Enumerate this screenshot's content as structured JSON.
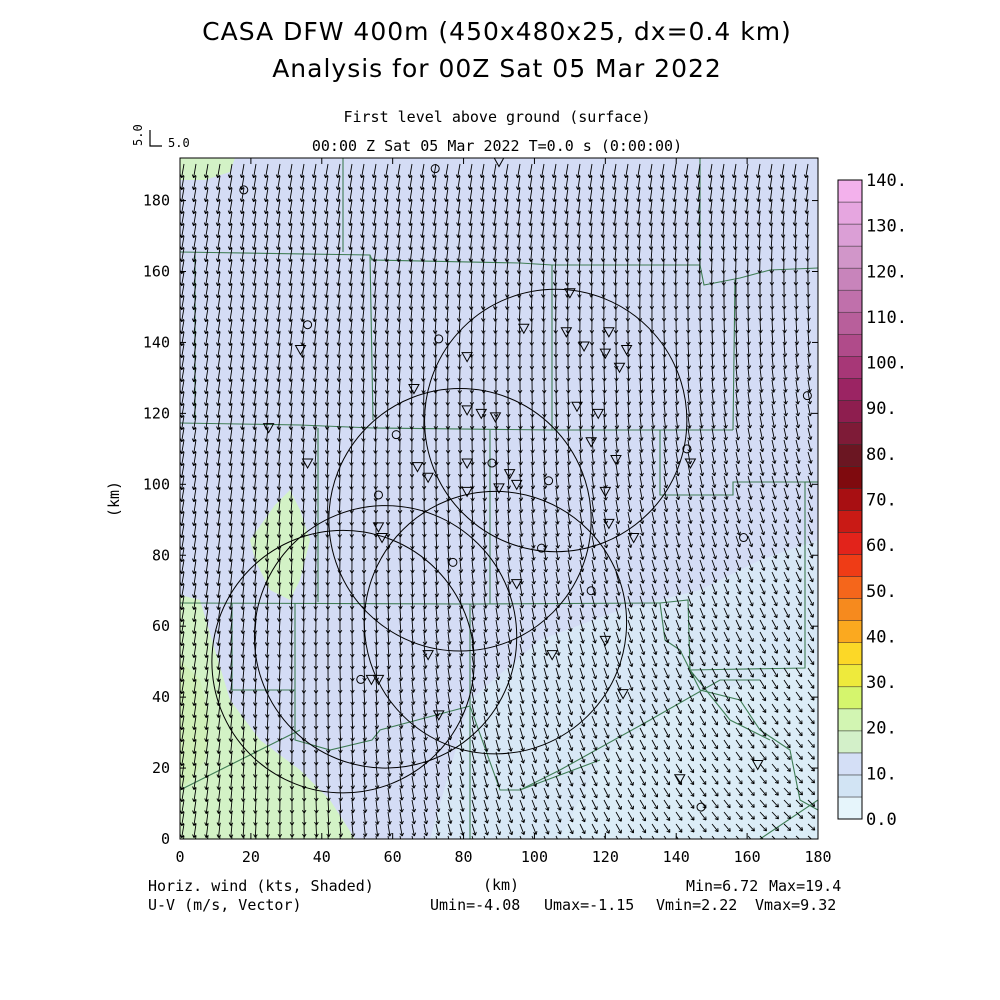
{
  "title": {
    "line1": "CASA DFW 400m (450x480x25, dx=0.4 km)",
    "line2": "Analysis for 00Z Sat 05 Mar 2022"
  },
  "subtitle": {
    "level": "First level above ground (surface)",
    "time": "00:00 Z Sat 05 Mar 2022    T=0.0 s (0:00:00)"
  },
  "reference_vector": {
    "value": "5.0",
    "label": "5.0"
  },
  "chart_data": {
    "type": "heatmap",
    "xlabel": "(km)",
    "ylabel": "(km)",
    "xlim": [
      0,
      180
    ],
    "ylim": [
      0,
      192
    ],
    "x_ticks": [
      "0",
      "20",
      "40",
      "60",
      "80",
      "100",
      "120",
      "140",
      "160",
      "180"
    ],
    "y_ticks": [
      "0",
      "20",
      "40",
      "60",
      "80",
      "100",
      "120",
      "140",
      "160",
      "180"
    ],
    "shaded_field": "Horiz. wind (kts, Shaded)",
    "vector_field": "U-V (m/s, Vector)",
    "colorbar": {
      "labels": [
        "0.0",
        "10.",
        "20.",
        "30.",
        "40.",
        "50.",
        "60.",
        "70.",
        "80.",
        "90.",
        "100.",
        "110.",
        "120.",
        "130.",
        "140."
      ],
      "colors": [
        "#e6f5fb",
        "#d2e4f4",
        "#d4dff6",
        "#d3f0c9",
        "#d2f5b2",
        "#d5f56d",
        "#eeea3c",
        "#fcd827",
        "#fba91f",
        "#f68a1e",
        "#f5661b",
        "#ef3c16",
        "#e2231b",
        "#c91a15",
        "#a80f12",
        "#7f0a0e",
        "#6b1622",
        "#7e1b37",
        "#8e1e4f",
        "#9b2463",
        "#a73777",
        "#b04b8a",
        "#b85f9b",
        "#c070ab",
        "#c884bb",
        "#d196c9",
        "#db9fd6",
        "#e6a6e0",
        "#f3b1ec"
      ]
    },
    "stats": {
      "min": "Min=6.72",
      "max": "Max=19.4",
      "umin": "Umin=-4.08",
      "umax": "Umax=-1.15",
      "vmin": "Vmin=2.22",
      "vmax": "Vmax=9.32"
    },
    "radar_rings": [
      {
        "cx": 106,
        "cy": 118,
        "r": 37
      },
      {
        "cx": 79,
        "cy": 90,
        "r": 37
      },
      {
        "cx": 89,
        "cy": 61,
        "r": 37
      },
      {
        "cx": 58,
        "cy": 57,
        "r": 37
      },
      {
        "cx": 46,
        "cy": 50,
        "r": 37
      }
    ],
    "stations": [
      {
        "x": 18,
        "y": 183,
        "m": "o"
      },
      {
        "x": 72,
        "y": 189,
        "m": "o"
      },
      {
        "x": 90,
        "y": 191,
        "m": "v"
      },
      {
        "x": 36,
        "y": 145,
        "m": "o"
      },
      {
        "x": 34,
        "y": 138,
        "m": "v"
      },
      {
        "x": 73,
        "y": 141,
        "m": "o"
      },
      {
        "x": 81,
        "y": 136,
        "m": "v"
      },
      {
        "x": 97,
        "y": 144,
        "m": "v"
      },
      {
        "x": 110,
        "y": 154,
        "m": "v"
      },
      {
        "x": 109,
        "y": 143,
        "m": "v"
      },
      {
        "x": 114,
        "y": 139,
        "m": "v"
      },
      {
        "x": 121,
        "y": 143,
        "m": "v"
      },
      {
        "x": 120,
        "y": 137,
        "m": "v"
      },
      {
        "x": 126,
        "y": 138,
        "m": "v"
      },
      {
        "x": 124,
        "y": 133,
        "m": "v"
      },
      {
        "x": 66,
        "y": 127,
        "m": "v"
      },
      {
        "x": 81,
        "y": 121,
        "m": "v"
      },
      {
        "x": 85,
        "y": 120,
        "m": "v"
      },
      {
        "x": 89,
        "y": 119,
        "m": "v"
      },
      {
        "x": 112,
        "y": 122,
        "m": "v"
      },
      {
        "x": 118,
        "y": 120,
        "m": "v"
      },
      {
        "x": 25,
        "y": 116,
        "m": "v"
      },
      {
        "x": 61,
        "y": 114,
        "m": "o"
      },
      {
        "x": 116,
        "y": 112,
        "m": "v"
      },
      {
        "x": 143,
        "y": 110,
        "m": "o"
      },
      {
        "x": 144,
        "y": 106,
        "m": "v"
      },
      {
        "x": 36,
        "y": 106,
        "m": "v"
      },
      {
        "x": 67,
        "y": 105,
        "m": "v"
      },
      {
        "x": 81,
        "y": 106,
        "m": "v"
      },
      {
        "x": 88,
        "y": 106,
        "m": "o"
      },
      {
        "x": 93,
        "y": 103,
        "m": "v"
      },
      {
        "x": 123,
        "y": 107,
        "m": "v"
      },
      {
        "x": 70,
        "y": 102,
        "m": "v"
      },
      {
        "x": 81,
        "y": 98,
        "m": "v"
      },
      {
        "x": 90,
        "y": 99,
        "m": "v"
      },
      {
        "x": 95,
        "y": 100,
        "m": "v"
      },
      {
        "x": 104,
        "y": 101,
        "m": "o"
      },
      {
        "x": 56,
        "y": 97,
        "m": "o"
      },
      {
        "x": 120,
        "y": 98,
        "m": "v"
      },
      {
        "x": 56,
        "y": 88,
        "m": "v"
      },
      {
        "x": 57,
        "y": 85,
        "m": "v"
      },
      {
        "x": 121,
        "y": 89,
        "m": "v"
      },
      {
        "x": 128,
        "y": 85,
        "m": "v"
      },
      {
        "x": 102,
        "y": 82,
        "m": "o"
      },
      {
        "x": 77,
        "y": 78,
        "m": "o"
      },
      {
        "x": 159,
        "y": 85,
        "m": "o"
      },
      {
        "x": 95,
        "y": 72,
        "m": "v"
      },
      {
        "x": 116,
        "y": 70,
        "m": "o"
      },
      {
        "x": 120,
        "y": 56,
        "m": "v"
      },
      {
        "x": 105,
        "y": 52,
        "m": "v"
      },
      {
        "x": 70,
        "y": 52,
        "m": "v"
      },
      {
        "x": 51,
        "y": 45,
        "m": "o"
      },
      {
        "x": 54,
        "y": 45,
        "m": "v"
      },
      {
        "x": 56,
        "y": 45,
        "m": "v"
      },
      {
        "x": 125,
        "y": 41,
        "m": "v"
      },
      {
        "x": 73,
        "y": 35,
        "m": "v"
      },
      {
        "x": 141,
        "y": 17,
        "m": "v"
      },
      {
        "x": 163,
        "y": 21,
        "m": "v"
      },
      {
        "x": 147,
        "y": 9,
        "m": "o"
      },
      {
        "x": 177,
        "y": 125,
        "m": "o"
      }
    ]
  }
}
